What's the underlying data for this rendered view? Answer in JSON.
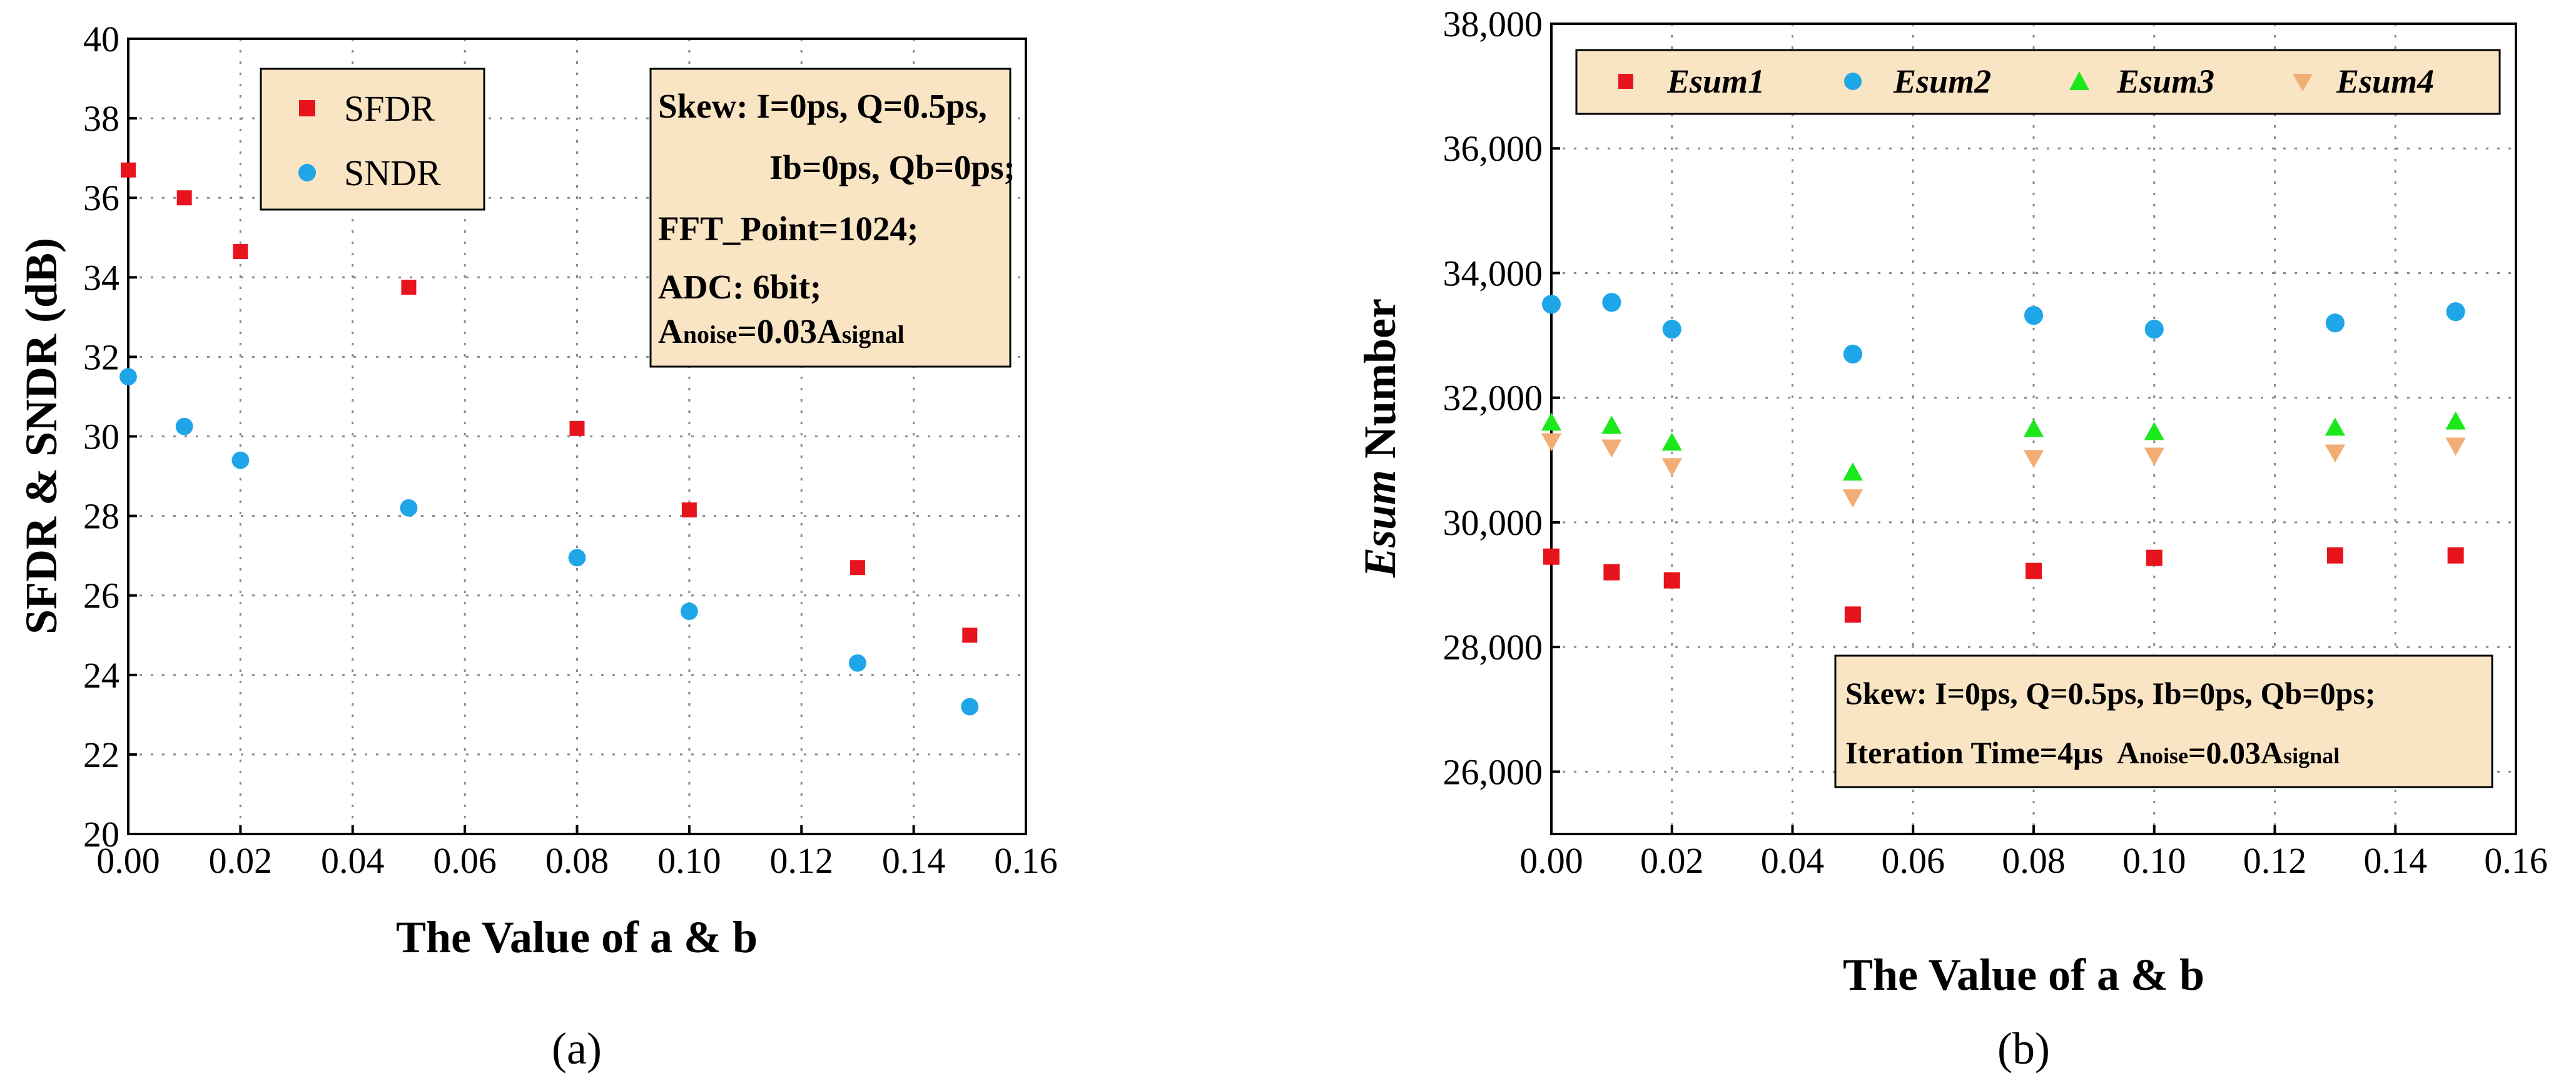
{
  "colors": {
    "sfdr": "#e8141d",
    "sndr": "#1fa6e8",
    "esum1": "#e8141d",
    "esum2": "#1fa6e8",
    "esum3": "#1ce81c",
    "esum4": "#f2ad74",
    "legend_bg": "#f9e4c4"
  },
  "chart_data": [
    {
      "type": "scatter",
      "panel_label": "(a)",
      "xlabel": "The Value of a & b",
      "ylabel": "SFDR & SNDR (dB)",
      "xlim": [
        0,
        0.16
      ],
      "ylim": [
        20,
        40
      ],
      "x_ticks": [
        "0.00",
        "0.02",
        "0.04",
        "0.06",
        "0.08",
        "0.10",
        "0.12",
        "0.14",
        "0.16"
      ],
      "y_ticks": [
        "20",
        "22",
        "24",
        "26",
        "28",
        "30",
        "32",
        "34",
        "36",
        "38",
        "40"
      ],
      "grid": true,
      "x": [
        0.0,
        0.01,
        0.02,
        0.05,
        0.08,
        0.1,
        0.13,
        0.15
      ],
      "series": [
        {
          "name": "SFDR",
          "marker": "square",
          "values": [
            36.7,
            36.0,
            34.65,
            33.75,
            30.2,
            28.15,
            26.7,
            25.0
          ]
        },
        {
          "name": "SNDR",
          "marker": "circle",
          "values": [
            31.5,
            30.25,
            29.4,
            28.2,
            26.95,
            25.6,
            24.3,
            23.2
          ]
        }
      ],
      "annotation_lines": [
        "Skew: I=0ps, Q=0.5ps,",
        "Ib=0ps, Qb=0ps;",
        "FFT_Point=1024;",
        "ADC: 6bit;"
      ],
      "annotation_noise": {
        "a": "A",
        "noise": "noise",
        "eq": "=0.03A",
        "signal": "signal"
      }
    },
    {
      "type": "scatter",
      "panel_label": "(b)",
      "xlabel": "The Value of a & b",
      "ylabel_italic": "Esum",
      "ylabel_rest": " Number",
      "xlim": [
        0,
        0.16
      ],
      "ylim": [
        25000,
        38000
      ],
      "x_ticks": [
        "0.00",
        "0.02",
        "0.04",
        "0.06",
        "0.08",
        "0.10",
        "0.12",
        "0.14",
        "0.16"
      ],
      "y_ticks": [
        "26,000",
        "28,000",
        "30,000",
        "32,000",
        "34,000",
        "36,000",
        "38,000"
      ],
      "grid": true,
      "x": [
        0.0,
        0.01,
        0.02,
        0.05,
        0.08,
        0.1,
        0.13,
        0.15
      ],
      "series": [
        {
          "name": "Esum1",
          "marker": "square",
          "values": [
            29450,
            29200,
            29070,
            28520,
            29220,
            29430,
            29470,
            29470
          ]
        },
        {
          "name": "Esum2",
          "marker": "circle",
          "values": [
            33500,
            33530,
            33100,
            32700,
            33320,
            33100,
            33200,
            33380
          ]
        },
        {
          "name": "Esum3",
          "marker": "triangle-up",
          "values": [
            31600,
            31550,
            31280,
            30800,
            31500,
            31450,
            31520,
            31620
          ]
        },
        {
          "name": "Esum4",
          "marker": "triangle-down",
          "values": [
            31300,
            31200,
            30900,
            30400,
            31030,
            31070,
            31120,
            31230
          ]
        }
      ],
      "annotation_line1": "Skew: I=0ps, Q=0.5ps, Ib=0ps, Qb=0ps;",
      "annotation_line2_prefix": "Iteration Time=4μs",
      "annotation_noise": {
        "a": "A",
        "noise": "noise",
        "eq": "=0.03A",
        "signal": "signal"
      }
    }
  ]
}
